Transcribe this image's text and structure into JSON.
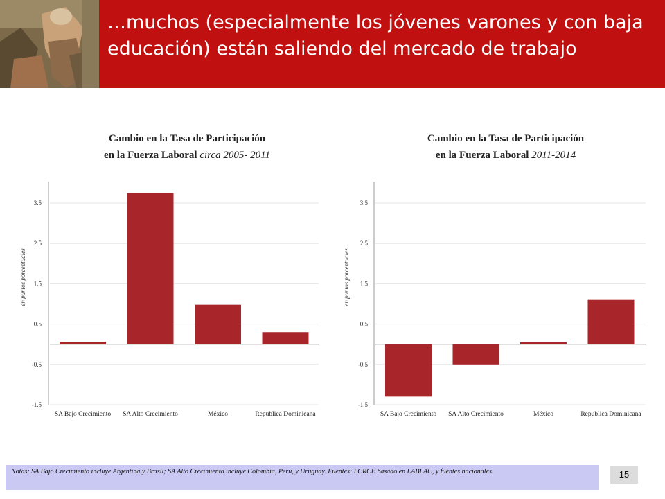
{
  "header": {
    "title_line1": "…muchos (especialmente los jóvenes varones y con baja",
    "title_line2": "educación) están saliendo del mercado de trabajo",
    "background_color": "#c0100f"
  },
  "chart_data": [
    {
      "type": "bar",
      "title_line1": "Cambio en la Tasa de Participación",
      "title_line2_bold": "en la Fuerza Laboral",
      "title_line2_italic": "circa 2005- 2011",
      "ylabel": "en puntos porcentuales",
      "categories": [
        "SA Bajo Crecimiento",
        "SA Alto Crecimiento",
        "México",
        "Republica Dominicana"
      ],
      "values": [
        0.06,
        3.75,
        0.98,
        0.3
      ],
      "yticks": [
        "3.5",
        "2.5",
        "1.5",
        "0.5",
        "-0.5",
        "-1.5"
      ],
      "ylim": [
        -1.5,
        3.5
      ],
      "bar_color": "#a8262a"
    },
    {
      "type": "bar",
      "title_line1": "Cambio en la Tasa de Participación",
      "title_line2_bold": "en la Fuerza Laboral",
      "title_line2_italic": "2011-2014",
      "ylabel": "en puntos porcentuales",
      "categories": [
        "SA Bajo Crecimiento",
        "SA Alto Crecimiento",
        "México",
        "Republica Dominicana"
      ],
      "values": [
        -1.3,
        -0.5,
        0.05,
        1.1
      ],
      "yticks": [
        "3.5",
        "2.5",
        "1.5",
        "0.5",
        "-0.5",
        "-1.5"
      ],
      "ylim": [
        -1.5,
        3.5
      ],
      "bar_color": "#a8262a"
    }
  ],
  "footer": {
    "note": "Notas: SA Bajo Crecimiento incluye Argentina y Brasil; SA Alto Crecimiento incluye Colombia, Perú, y Uruguay. Fuentes: LCRCE basado en LABLAC, y fuentes nacionales.",
    "page_number": "15"
  }
}
